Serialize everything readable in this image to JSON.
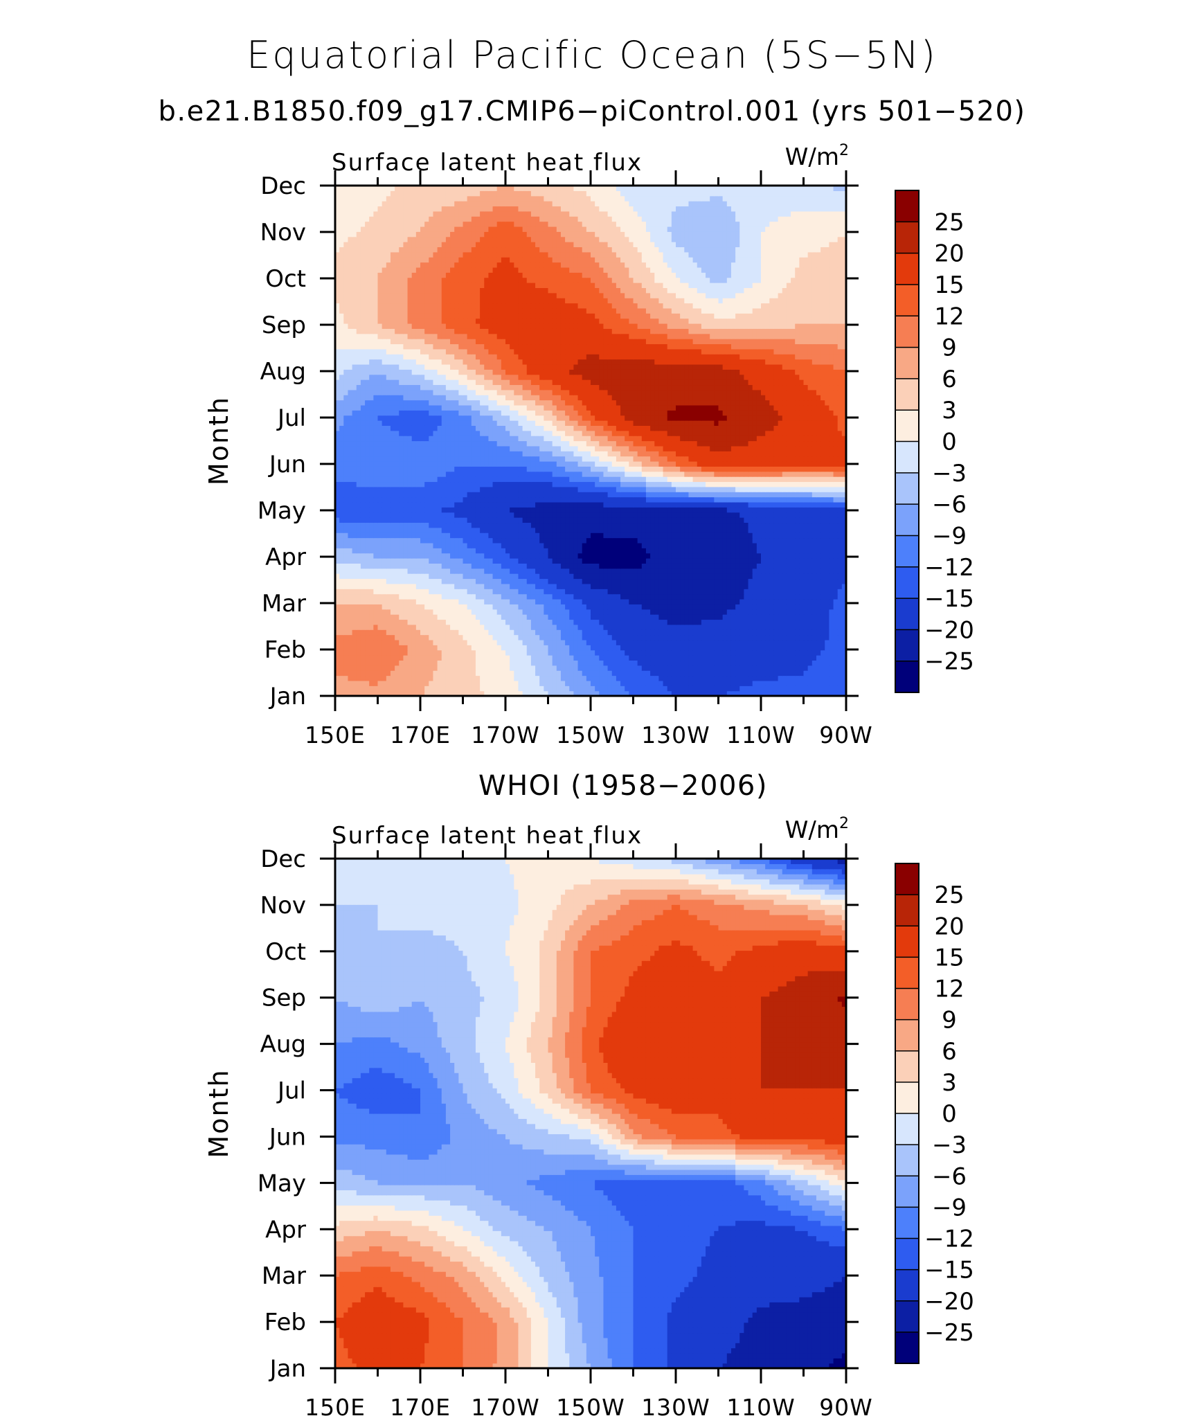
{
  "title": "Equatorial Pacific Ocean (5S−5N)",
  "subtitle": "b.e21.B1850.f09_g17.CMIP6−piControl.001 (yrs 501−520)",
  "chart_data": [
    {
      "type": "heatmap",
      "panel_title": "",
      "left_label": "Surface latent heat flux",
      "units_base": "W/m",
      "units_sup": "2",
      "ylabel": "Month",
      "x_ticks": [
        "150E",
        "170E",
        "170W",
        "150W",
        "130W",
        "110W",
        "90W"
      ],
      "x_lon": [
        150,
        170,
        190,
        210,
        230,
        250,
        270
      ],
      "y_ticks": [
        "Jan",
        "Feb",
        "Mar",
        "Apr",
        "May",
        "Jun",
        "Jul",
        "Aug",
        "Sep",
        "Oct",
        "Nov",
        "Dec"
      ],
      "colorbar_labels": [
        "25",
        "20",
        "15",
        "12",
        "9",
        "6",
        "3",
        "0",
        "−3",
        "−6",
        "−9",
        "−12",
        "−15",
        "−20",
        "−25"
      ],
      "levels": [
        -25,
        -20,
        -15,
        -12,
        -9,
        -6,
        -3,
        0,
        3,
        6,
        9,
        12,
        15,
        20,
        25
      ],
      "x_grid": [
        150,
        160,
        170,
        180,
        190,
        200,
        210,
        220,
        230,
        240,
        250,
        260,
        270
      ],
      "values": [
        [
          8,
          8,
          6,
          4,
          2,
          -3,
          -8,
          -12,
          -15,
          -15,
          -14,
          -14,
          -12
        ],
        [
          10,
          12,
          8,
          4,
          0,
          -6,
          -12,
          -16,
          -18,
          -18,
          -17,
          -16,
          -14
        ],
        [
          6,
          6,
          3,
          0,
          -5,
          -10,
          -16,
          -20,
          -22,
          -21,
          -19,
          -17,
          -14
        ],
        [
          -4,
          -6,
          -6,
          -10,
          -14,
          -20,
          -27,
          -27,
          -22,
          -22,
          -20,
          -19,
          -16
        ],
        [
          -14,
          -14,
          -14,
          -16,
          -20,
          -22,
          -23,
          -22,
          -21,
          -21,
          -19,
          -18,
          -16
        ],
        [
          -11,
          -10,
          -10,
          -12,
          -12,
          -10,
          -4,
          4,
          12,
          18,
          17,
          16,
          16
        ],
        [
          -8,
          -12,
          -14,
          -10,
          -4,
          4,
          14,
          22,
          26,
          26,
          22,
          18,
          14
        ],
        [
          -2,
          -6,
          -2,
          4,
          12,
          18,
          22,
          23,
          22,
          22,
          18,
          14,
          12
        ],
        [
          2,
          6,
          10,
          14,
          17,
          18,
          16,
          12,
          8,
          4,
          5,
          6,
          6
        ],
        [
          4,
          6,
          10,
          14,
          16,
          14,
          12,
          6,
          0,
          -4,
          0,
          4,
          4
        ],
        [
          2,
          4,
          6,
          10,
          14,
          10,
          6,
          2,
          -4,
          -6,
          0,
          2,
          3
        ],
        [
          0,
          2,
          4,
          4,
          6,
          4,
          2,
          -2,
          -2,
          -2,
          -2,
          -2,
          -4
        ]
      ]
    },
    {
      "type": "heatmap",
      "panel_title": "WHOI (1958−2006)",
      "left_label": "Surface latent heat flux",
      "units_base": "W/m",
      "units_sup": "2",
      "ylabel": "Month",
      "x_ticks": [
        "150E",
        "170E",
        "170W",
        "150W",
        "130W",
        "110W",
        "90W"
      ],
      "x_lon": [
        150,
        170,
        190,
        210,
        230,
        250,
        270
      ],
      "y_ticks": [
        "Jan",
        "Feb",
        "Mar",
        "Apr",
        "May",
        "Jun",
        "Jul",
        "Aug",
        "Sep",
        "Oct",
        "Nov",
        "Dec"
      ],
      "colorbar_labels": [
        "25",
        "20",
        "15",
        "12",
        "9",
        "6",
        "3",
        "0",
        "−3",
        "−6",
        "−9",
        "−12",
        "−15",
        "−20",
        "−25"
      ],
      "levels": [
        -25,
        -20,
        -15,
        -12,
        -9,
        -6,
        -3,
        0,
        3,
        6,
        9,
        12,
        15,
        20,
        25
      ],
      "x_grid": [
        150,
        160,
        170,
        180,
        190,
        200,
        210,
        220,
        230,
        240,
        250,
        260,
        270
      ],
      "values": [
        [
          14,
          16,
          15,
          12,
          8,
          0,
          -6,
          -12,
          -16,
          -20,
          -22,
          -24,
          -26
        ],
        [
          15,
          18,
          16,
          12,
          8,
          0,
          -8,
          -12,
          -16,
          -18,
          -21,
          -22,
          -23
        ],
        [
          12,
          14,
          11,
          8,
          2,
          -4,
          -8,
          -12,
          -14,
          -16,
          -18,
          -18,
          -20
        ],
        [
          4,
          6,
          4,
          0,
          -4,
          -6,
          -9,
          -12,
          -14,
          -15,
          -16,
          -15,
          -12
        ],
        [
          -4,
          -6,
          -6,
          -6,
          -8,
          -10,
          -12,
          -14,
          -14,
          -14,
          -10,
          -4,
          2
        ],
        [
          -10,
          -10,
          -12,
          -8,
          -6,
          -4,
          -2,
          8,
          12,
          14,
          16,
          16,
          18
        ],
        [
          -12,
          -14,
          -12,
          -6,
          -2,
          4,
          12,
          16,
          18,
          16,
          20,
          20,
          20
        ],
        [
          -9,
          -10,
          -8,
          -4,
          0,
          6,
          14,
          20,
          20,
          16,
          20,
          22,
          22
        ],
        [
          -6,
          -4,
          -6,
          -4,
          -2,
          4,
          12,
          16,
          18,
          16,
          20,
          22,
          26
        ],
        [
          -4,
          -3,
          -4,
          -3,
          0,
          4,
          12,
          14,
          16,
          14,
          16,
          18,
          16
        ],
        [
          -3,
          -3,
          -2,
          -2,
          -1,
          2,
          6,
          10,
          12,
          10,
          8,
          6,
          2
        ],
        [
          -2,
          -2,
          -1,
          0,
          0,
          2,
          0,
          -2,
          -4,
          -8,
          -12,
          -18,
          -22
        ]
      ]
    }
  ]
}
